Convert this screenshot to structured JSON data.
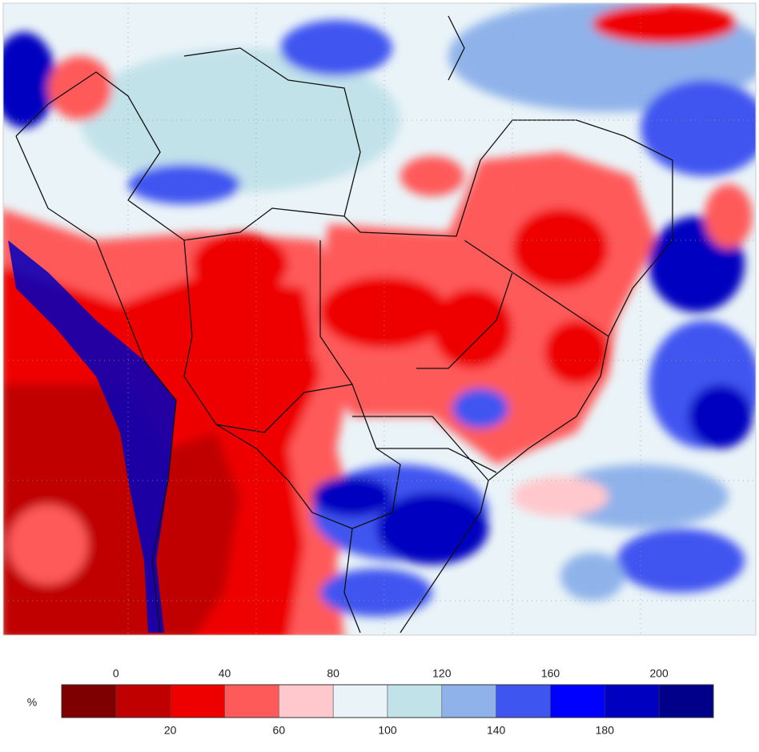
{
  "legend": {
    "unit": "%",
    "colors": [
      "#7f0000",
      "#c00000",
      "#ee0000",
      "#ff5a5a",
      "#ffc8cc",
      "#eaf4f8",
      "#c2e2ea",
      "#8fb2ea",
      "#3f55f0",
      "#0000ff",
      "#0000c0",
      "#00008a"
    ],
    "ticks": [
      0,
      20,
      40,
      60,
      80,
      100,
      120,
      140,
      160,
      180,
      200
    ]
  }
}
